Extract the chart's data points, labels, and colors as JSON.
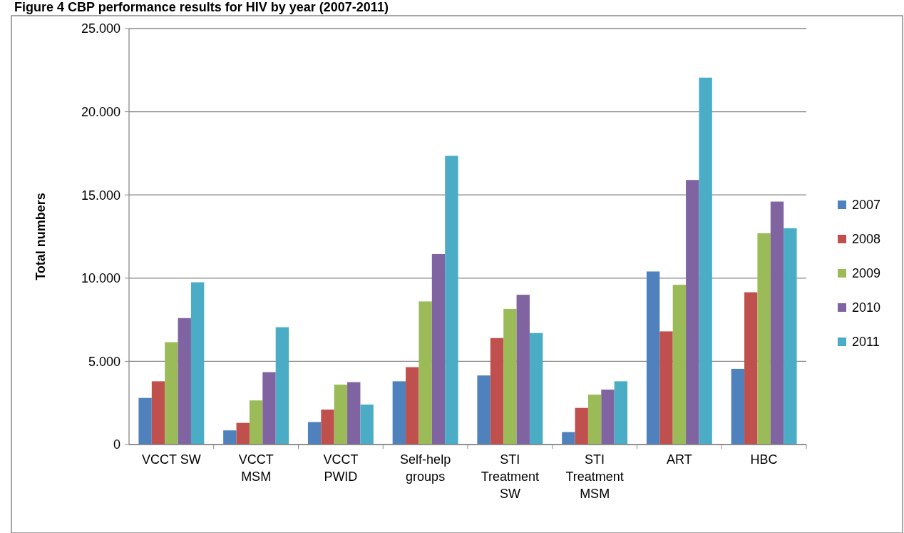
{
  "chart_data": {
    "type": "bar",
    "title": "Figure 4      CBP performance results for HIV by year (2007-2011)",
    "ylabel": "Total numbers",
    "categories": [
      "VCCT SW",
      "VCCT MSM",
      "VCCT PWID",
      "Self-help groups",
      "STI Treatment SW",
      "STI Treatment MSM",
      "ART",
      "HBC"
    ],
    "series": [
      {
        "name": "2007",
        "color": "#4f81bd",
        "values": [
          2800,
          850,
          1350,
          3800,
          4150,
          750,
          10400,
          4550
        ]
      },
      {
        "name": "2008",
        "color": "#c0504d",
        "values": [
          3800,
          1300,
          2100,
          4650,
          6400,
          2200,
          6800,
          9150
        ]
      },
      {
        "name": "2009",
        "color": "#9bbb59",
        "values": [
          6150,
          2650,
          3600,
          8600,
          8150,
          3000,
          9600,
          12700
        ]
      },
      {
        "name": "2010",
        "color": "#8064a2",
        "values": [
          7600,
          4350,
          3750,
          11450,
          9000,
          3300,
          15900,
          14600
        ]
      },
      {
        "name": "2011",
        "color": "#4bacc6",
        "values": [
          9750,
          7050,
          2400,
          17350,
          6700,
          3800,
          22050,
          13000
        ]
      }
    ],
    "ylim": [
      0,
      25000
    ],
    "yticks": [
      0,
      {
        "value": 5000,
        "label": "5.000"
      },
      {
        "value": 10000,
        "label": "10.000"
      },
      {
        "value": 15000,
        "label": "15.000"
      },
      {
        "value": 20000,
        "label": "20.000"
      },
      {
        "value": 25000,
        "label": "25.000"
      }
    ],
    "grid": "y",
    "legend": "right"
  }
}
